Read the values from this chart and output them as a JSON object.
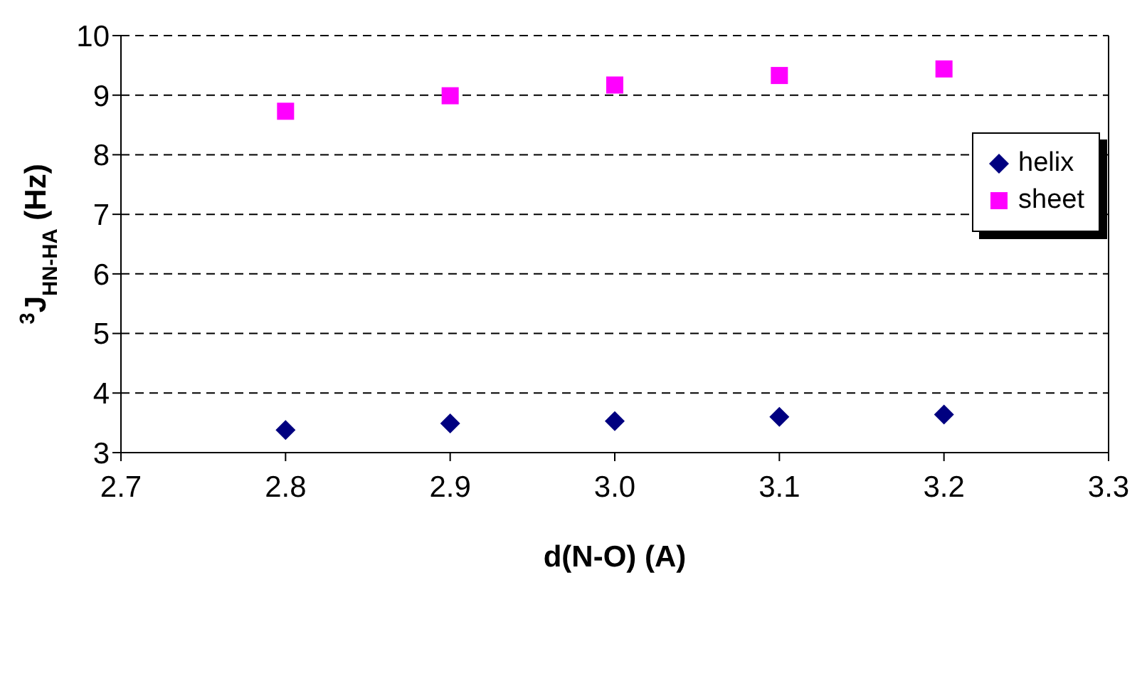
{
  "chart_data": {
    "type": "scatter",
    "xlabel": "d(N-O) (A)",
    "ylabel": "$^{3}$J$_{HN-HA}$ (Hz)",
    "x": [
      2.8,
      2.9,
      3.0,
      3.1,
      3.2
    ],
    "series": [
      {
        "name": "helix",
        "color": "#000080",
        "marker": "diamond",
        "values": [
          3.38,
          3.49,
          3.53,
          3.6,
          3.64
        ]
      },
      {
        "name": "sheet",
        "color": "#ff00ff",
        "marker": "square",
        "values": [
          8.73,
          8.99,
          9.17,
          9.33,
          9.44
        ]
      }
    ],
    "xlim": [
      2.7,
      3.3
    ],
    "xticks": [
      2.7,
      2.8,
      2.9,
      {
        "value": 3,
        "label": "3.0"
      },
      3.1,
      3.2,
      3.3
    ],
    "ylim": [
      3,
      10
    ],
    "yticks": [
      3,
      4,
      5,
      6,
      7,
      8,
      9,
      10
    ],
    "grid": "y",
    "legend": "top right"
  }
}
